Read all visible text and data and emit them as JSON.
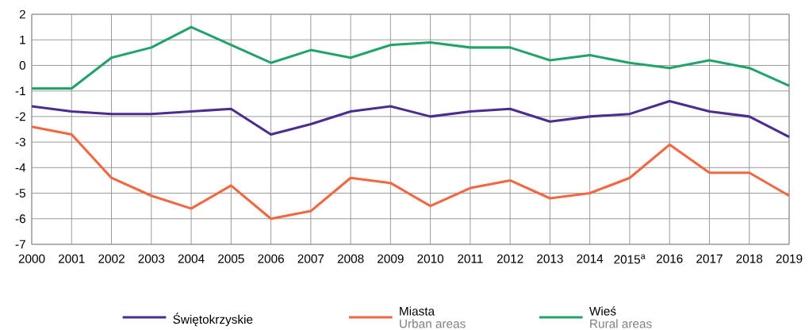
{
  "chart_data": {
    "type": "line",
    "categories": [
      "2000",
      "2001",
      "2002",
      "2003",
      "2004",
      "2005",
      "2006",
      "2007",
      "2008",
      "2009",
      "2010",
      "2011",
      "2012",
      "2013",
      "2014",
      "2015$^{a}$",
      "2016",
      "2017",
      "2018",
      "2019"
    ],
    "series": [
      {
        "name": "Świętokrzyskie",
        "color": "#4b2d8f",
        "values": [
          -1.6,
          -1.8,
          -1.9,
          -1.9,
          -1.8,
          -1.7,
          -2.7,
          -2.3,
          -1.8,
          -1.6,
          -2.0,
          -1.8,
          -1.7,
          -2.2,
          -2.0,
          -1.9,
          -1.4,
          -1.8,
          -2.0,
          -2.8
        ]
      },
      {
        "name": "Miasta",
        "color": "#f26640",
        "values": [
          -2.4,
          -2.7,
          -4.4,
          -5.1,
          -5.6,
          -4.7,
          -6.0,
          -5.7,
          -4.4,
          -4.6,
          -5.5,
          -4.8,
          -4.5,
          -5.2,
          -5.0,
          -4.4,
          -3.1,
          -4.2,
          -4.2,
          -5.1
        ]
      },
      {
        "name": "Wieś",
        "color": "#22a36a",
        "values": [
          -0.9,
          -0.9,
          0.3,
          0.7,
          1.5,
          0.8,
          0.1,
          0.6,
          0.3,
          0.8,
          0.9,
          0.7,
          0.7,
          0.2,
          0.4,
          0.1,
          -0.1,
          0.2,
          -0.1,
          -0.8
        ]
      }
    ],
    "annotations": [
      "Urban areas",
      "Rural areas"
    ],
    "ylim": [
      -7,
      2
    ],
    "yticks": [
      -7,
      -6,
      -5,
      -4,
      -3,
      -2,
      -1,
      0,
      1,
      2
    ],
    "grid": true,
    "legend": "bottom"
  }
}
